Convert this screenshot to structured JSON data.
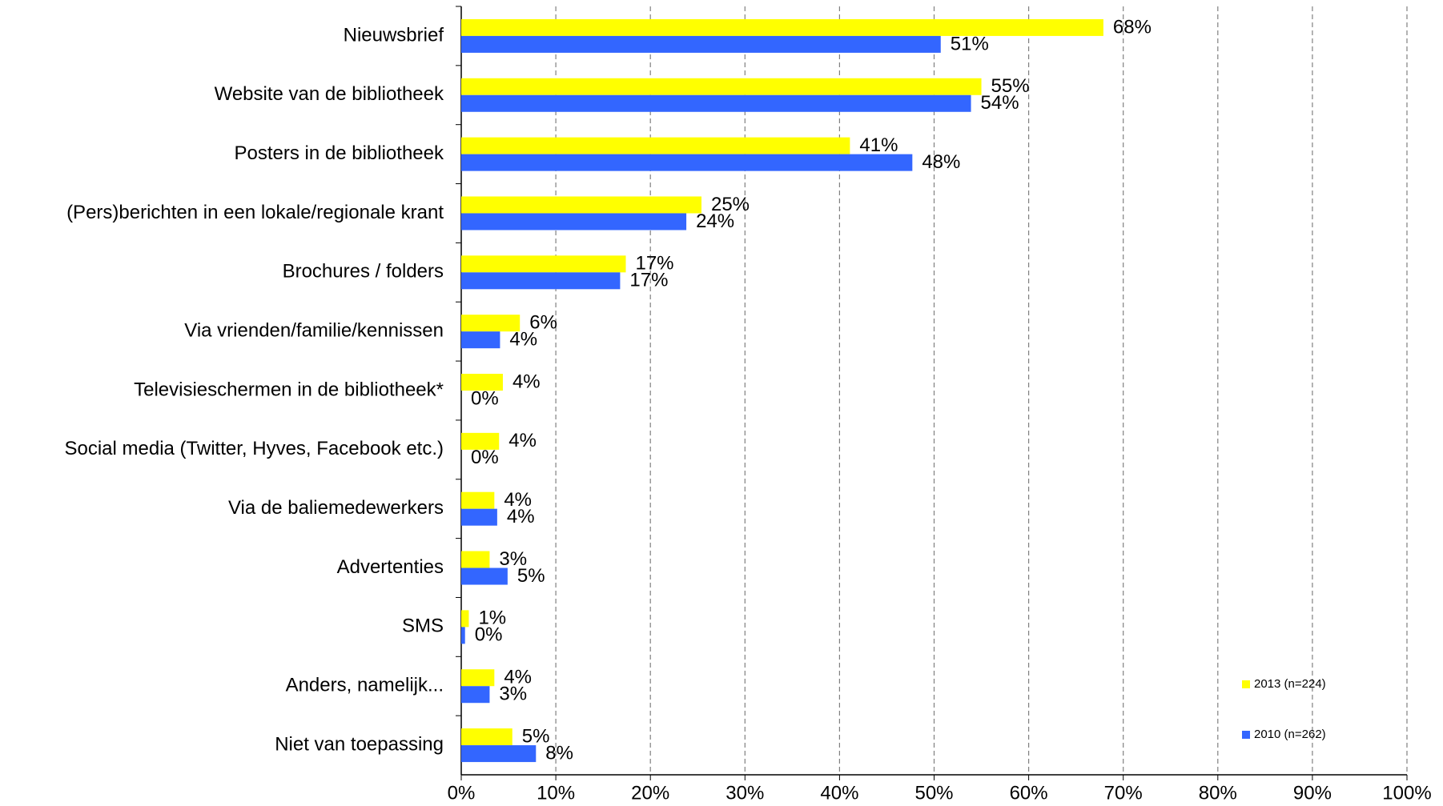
{
  "chart_data": {
    "type": "hbar",
    "categories": [
      "Nieuwsbrief",
      "Website van de bibliotheek",
      "Posters in de bibliotheek",
      "(Pers)berichten in een lokale/regionale krant",
      "Brochures / folders",
      "Via vrienden/familie/kennissen",
      "Televisieschermen in de bibliotheek*",
      "Social media (Twitter, Hyves, Facebook etc.)",
      "Via de baliemedewerkers",
      "Advertenties",
      "SMS",
      "Anders, namelijk...",
      "Niet van toepassing"
    ],
    "series": [
      {
        "name": "2013 (n=224)",
        "color": "#ffff00",
        "values": [
          67.9,
          55.0,
          41.1,
          25.4,
          17.4,
          6.2,
          4.4,
          4.0,
          3.5,
          3.0,
          0.8,
          3.5,
          5.4
        ],
        "value_labels": [
          "68%",
          "55%",
          "41%",
          "25%",
          "17%",
          "6%",
          "4%",
          "4%",
          "4%",
          "3%",
          "1%",
          "4%",
          "5%"
        ]
      },
      {
        "name": "2010 (n=262)",
        "color": "#3366ff",
        "values": [
          50.7,
          53.9,
          47.7,
          23.8,
          16.8,
          4.1,
          0,
          0,
          3.8,
          4.9,
          0.4,
          3.0,
          7.9
        ],
        "value_labels": [
          "51%",
          "54%",
          "48%",
          "24%",
          "17%",
          "4%",
          "0%",
          "0%",
          "4%",
          "5%",
          "0%",
          "3%",
          "8%"
        ]
      }
    ],
    "xlim": [
      0,
      100
    ],
    "xticks": [
      {
        "value": 0,
        "label": "0%"
      },
      {
        "value": 10,
        "label": "10%"
      },
      {
        "value": 20,
        "label": "20%"
      },
      {
        "value": 30,
        "label": "30%"
      },
      {
        "value": 40,
        "label": "40%"
      },
      {
        "value": 50,
        "label": "50%"
      },
      {
        "value": 60,
        "label": "60%"
      },
      {
        "value": 70,
        "label": "70%"
      },
      {
        "value": 80,
        "label": "80%"
      },
      {
        "value": 90,
        "label": "90%"
      },
      {
        "value": 100,
        "label": "100%"
      }
    ],
    "grid": true,
    "legend": "right"
  }
}
